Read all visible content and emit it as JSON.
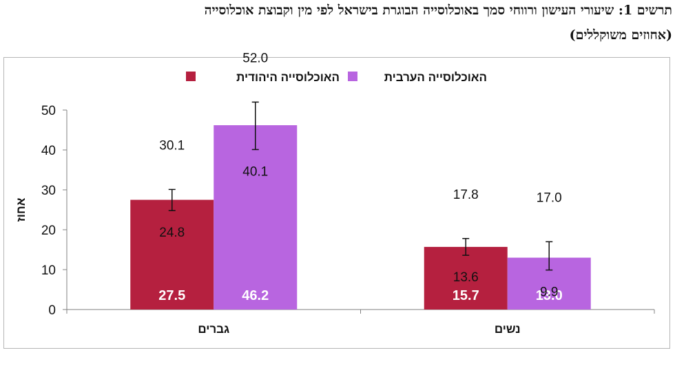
{
  "title": {
    "line1": "תרשים 1: שיעורי העישון ורווחי סמך באוכלוסייה הבוגרת בישראל לפי מין וקבוצת אוכלוסייה",
    "line2": "(אחוזים משוקללים)"
  },
  "chart_data": {
    "type": "bar",
    "categories": [
      "גברים",
      "נשים"
    ],
    "ylabel": "אחוז",
    "ylim": [
      0,
      50
    ],
    "yticks": [
      "0",
      "10",
      "20",
      "30",
      "40",
      "50"
    ],
    "legend_position": "top",
    "series": [
      {
        "name": "האוכלוסייה היהודית",
        "color": "#b5203f",
        "values": [
          27.5,
          15.7
        ],
        "value_labels": [
          "27.5",
          "15.7"
        ],
        "ci_upper": [
          30.1,
          17.8
        ],
        "ci_lower": [
          24.8,
          13.6
        ],
        "ci_upper_labels": [
          "30.1",
          "17.8"
        ],
        "ci_lower_labels": [
          "24.8",
          "13.6"
        ]
      },
      {
        "name": "האוכלוסייה הערבית",
        "color": "#b865e0",
        "values": [
          46.2,
          13.0
        ],
        "value_labels": [
          "46.2",
          "13.0"
        ],
        "ci_upper": [
          52.0,
          17.0
        ],
        "ci_lower": [
          40.1,
          9.9
        ],
        "ci_upper_labels": [
          "52.0",
          "17.0"
        ],
        "ci_lower_labels": [
          "40.1",
          "9.9"
        ]
      }
    ]
  }
}
